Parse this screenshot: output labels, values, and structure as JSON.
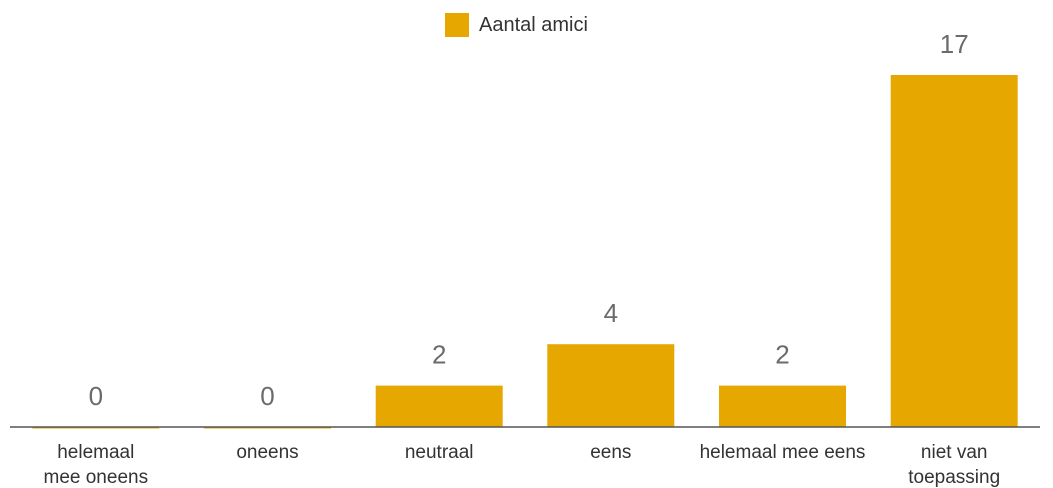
{
  "chart_data": {
    "type": "bar",
    "title": "",
    "xlabel": "",
    "ylabel": "",
    "categories": [
      [
        "helemaal",
        "mee oneens"
      ],
      [
        "oneens"
      ],
      [
        "neutraal"
      ],
      [
        "eens"
      ],
      [
        "helemaal mee eens"
      ],
      [
        "niet van",
        "toepassing"
      ]
    ],
    "series": [
      {
        "name": "Aantal amici",
        "values": [
          0,
          0,
          2,
          4,
          2,
          17
        ],
        "color": "#E6A800"
      }
    ],
    "ylim": [
      0,
      17
    ],
    "grid": false,
    "legend_position": "top-center",
    "data_labels": true,
    "colors": {
      "bar": "#E6A800",
      "axis": "#555555",
      "value_label": "#6b6b6b",
      "category_label": "#333333"
    }
  }
}
